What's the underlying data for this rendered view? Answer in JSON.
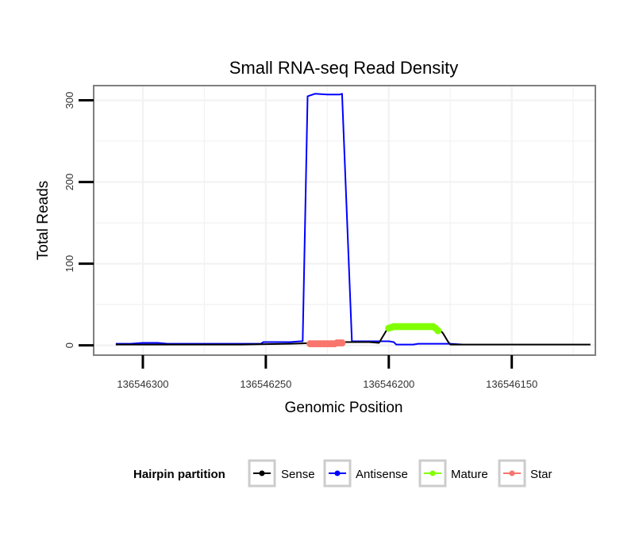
{
  "chart_data": {
    "type": "line",
    "title": "Small RNA-seq Read Density",
    "xlabel": "Genomic Position",
    "ylabel": "Total Reads",
    "x_reversed": true,
    "xlim": [
      136546320,
      136546116
    ],
    "ylim": [
      -12,
      318
    ],
    "x_ticks": [
      136546300,
      136546250,
      136546200,
      136546150
    ],
    "x_tick_labels": [
      "136546300",
      "136546250",
      "136546200",
      "136546150"
    ],
    "y_ticks": [
      0,
      100,
      200,
      300
    ],
    "y_tick_labels": [
      "0",
      "100",
      "200",
      "300"
    ],
    "grid": true,
    "legend": {
      "title": "Hairpin partition",
      "position": "bottom",
      "entries": [
        "Sense",
        "Antisense",
        "Mature",
        "Star"
      ]
    },
    "series": [
      {
        "name": "Sense",
        "color": "#000000",
        "style": "line",
        "x": [
          136546311,
          136546270,
          136546260,
          136546240,
          136546228,
          136546222,
          136546215,
          136546208,
          136546204,
          136546203,
          136546200,
          136546182,
          136546179,
          136546178,
          136546177,
          136546176,
          136546175,
          136546170,
          136546160,
          136546130,
          136546118
        ],
        "y": [
          1,
          1,
          1,
          2,
          3,
          4,
          4,
          4,
          3,
          8,
          23,
          23,
          18,
          15,
          10,
          5,
          1,
          1,
          1,
          1,
          1
        ]
      },
      {
        "name": "Antisense",
        "color": "#0000ff",
        "style": "line",
        "x": [
          136546311,
          136546305,
          136546300,
          136546294,
          136546290,
          136546260,
          136546252,
          136546251,
          136546240,
          136546236,
          136546235,
          136546233,
          136546230,
          136546225,
          136546222,
          136546220,
          136546219,
          136546215,
          136546200,
          136546198,
          136546197,
          136546190,
          136546188,
          136546175,
          136546170
        ],
        "y": [
          2,
          2,
          3,
          3,
          2,
          2,
          2,
          4,
          4,
          5,
          5,
          305,
          308,
          307,
          307,
          307,
          308,
          5,
          5,
          4,
          1,
          1,
          2,
          2,
          1
        ]
      },
      {
        "name": "Mature",
        "color": "#80ff00",
        "style": "points",
        "x": [
          136546200,
          136546199,
          136546198,
          136546197,
          136546196,
          136546195,
          136546194,
          136546193,
          136546192,
          136546191,
          136546190,
          136546189,
          136546188,
          136546187,
          136546186,
          136546185,
          136546184,
          136546183,
          136546182,
          136546181,
          136546180
        ],
        "y": [
          21,
          22,
          23,
          23,
          23,
          23,
          23,
          23,
          23,
          23,
          23,
          23,
          23,
          23,
          23,
          23,
          23,
          23,
          23,
          21,
          18
        ]
      },
      {
        "name": "Star",
        "color": "#f8766d",
        "style": "points",
        "x": [
          136546232,
          136546231,
          136546230,
          136546229,
          136546228,
          136546227,
          136546226,
          136546225,
          136546224,
          136546223,
          136546222,
          136546221,
          136546220,
          136546219
        ],
        "y": [
          2,
          2,
          2,
          2,
          2,
          2,
          2,
          2,
          2,
          2,
          2,
          3,
          3,
          3
        ]
      }
    ]
  }
}
